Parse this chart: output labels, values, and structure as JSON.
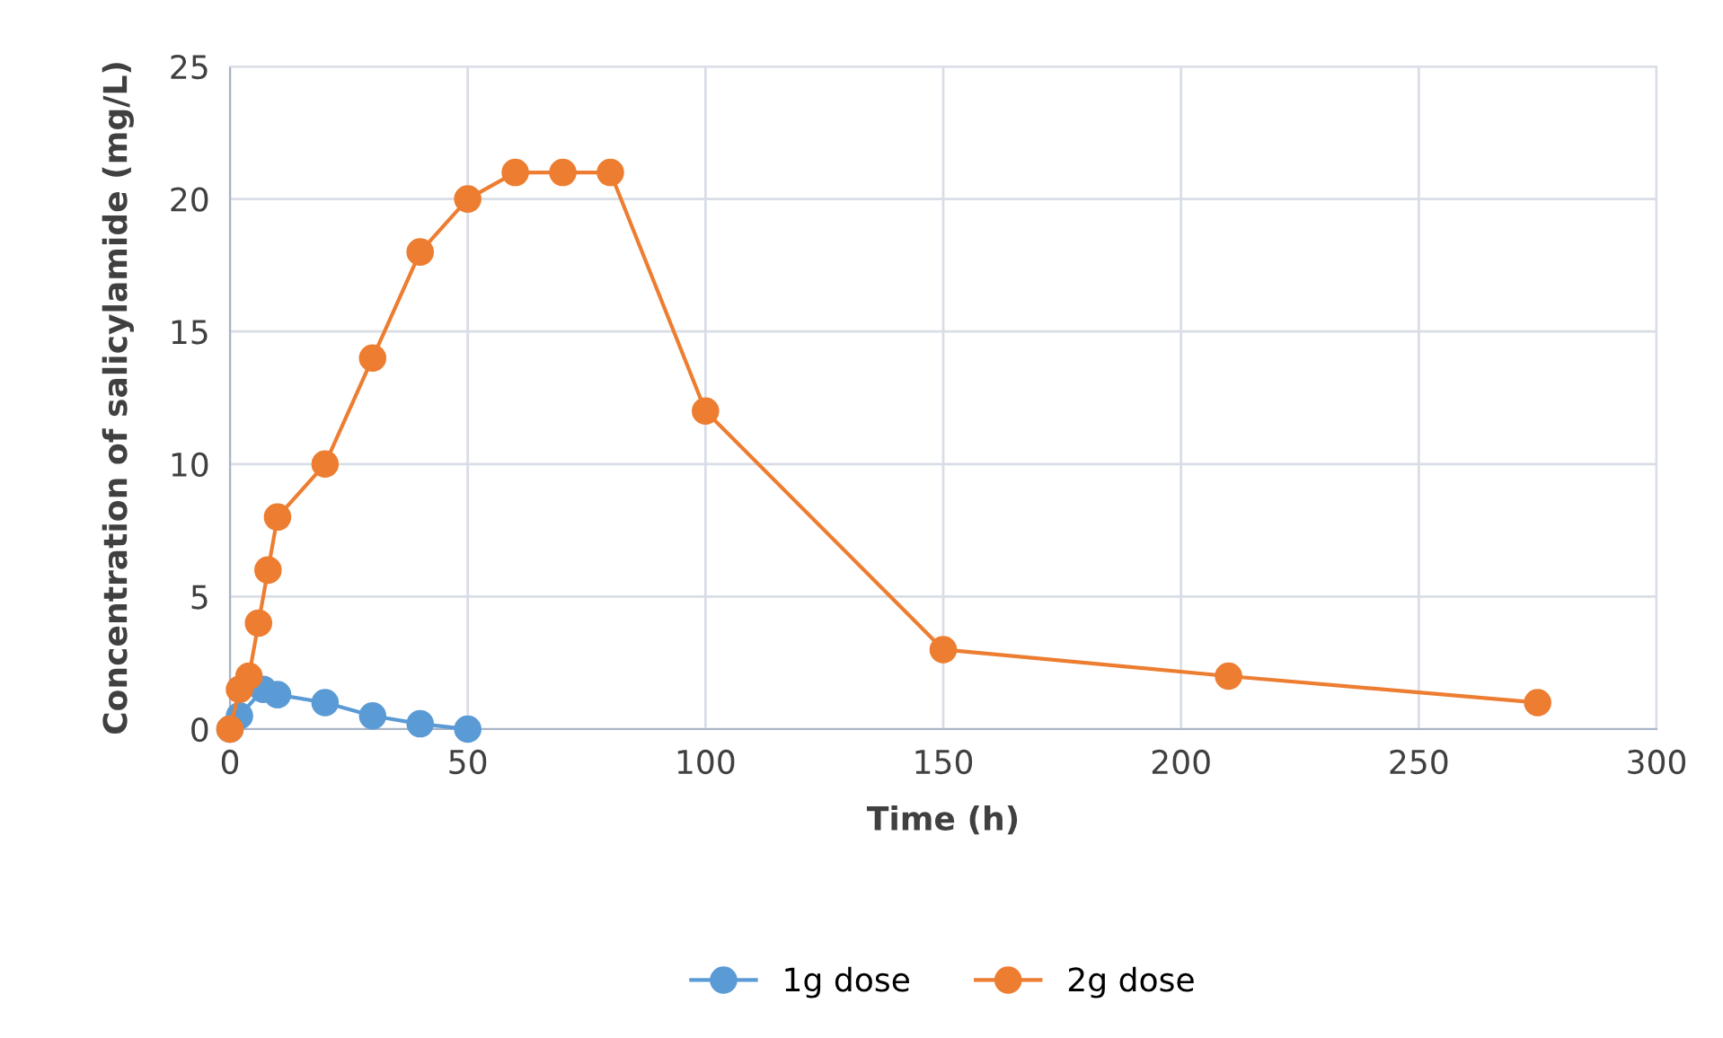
{
  "chart_data": {
    "type": "line",
    "xlabel": "Time (h)",
    "ylabel": "Concentration of salicylamide (mg/L)",
    "series": [
      {
        "name": "1g dose",
        "color": "#5b9bd5",
        "x": [
          0,
          2,
          7,
          10,
          20,
          30,
          40,
          50
        ],
        "values": [
          0,
          0.5,
          1.5,
          1.3,
          1.0,
          0.5,
          0.2,
          0
        ]
      },
      {
        "name": "2g dose",
        "color": "#ed7d31",
        "x": [
          0,
          2,
          4,
          6,
          8,
          10,
          20,
          30,
          40,
          50,
          60,
          70,
          80,
          100,
          150,
          210,
          275
        ],
        "values": [
          0,
          1.5,
          2,
          4,
          6,
          8,
          10,
          14,
          18,
          20,
          21,
          21,
          21,
          12,
          3,
          2,
          1
        ]
      }
    ],
    "xlim": [
      0,
      300
    ],
    "xticks": [
      0,
      50,
      100,
      150,
      200,
      250,
      300
    ],
    "ylim": [
      0,
      25
    ],
    "yticks": [
      0,
      5,
      10,
      15,
      20,
      25
    ],
    "grid": true,
    "legend": "bottom",
    "marker": "circle",
    "line_style": "solid"
  }
}
